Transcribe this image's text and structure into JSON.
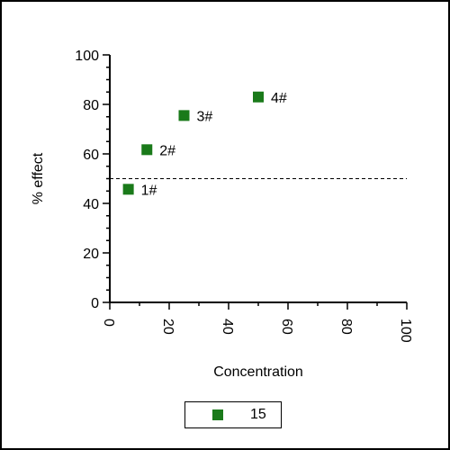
{
  "chart_data": {
    "type": "scatter",
    "title": "",
    "xlabel": "Concentration",
    "ylabel": "% effect",
    "xlim": [
      0,
      100
    ],
    "ylim": [
      0,
      100
    ],
    "x_ticks": [
      "0",
      "20",
      "40",
      "60",
      "80",
      "100"
    ],
    "y_ticks": [
      "0",
      "20",
      "40",
      "60",
      "80",
      "100"
    ],
    "x_tick_rotation": "vertical",
    "grid": false,
    "reference_line": {
      "y": 50,
      "style": "dashed"
    },
    "legend_position": "bottom-center",
    "series": [
      {
        "name": "15",
        "color": "#1a7a1a",
        "marker": "square",
        "points": [
          {
            "x": 6.25,
            "y": 45.7,
            "label": "1#"
          },
          {
            "x": 12.5,
            "y": 61.7,
            "label": "2#"
          },
          {
            "x": 25,
            "y": 75.5,
            "label": "3#"
          },
          {
            "x": 50,
            "y": 83.0,
            "label": "4#"
          }
        ]
      }
    ]
  }
}
